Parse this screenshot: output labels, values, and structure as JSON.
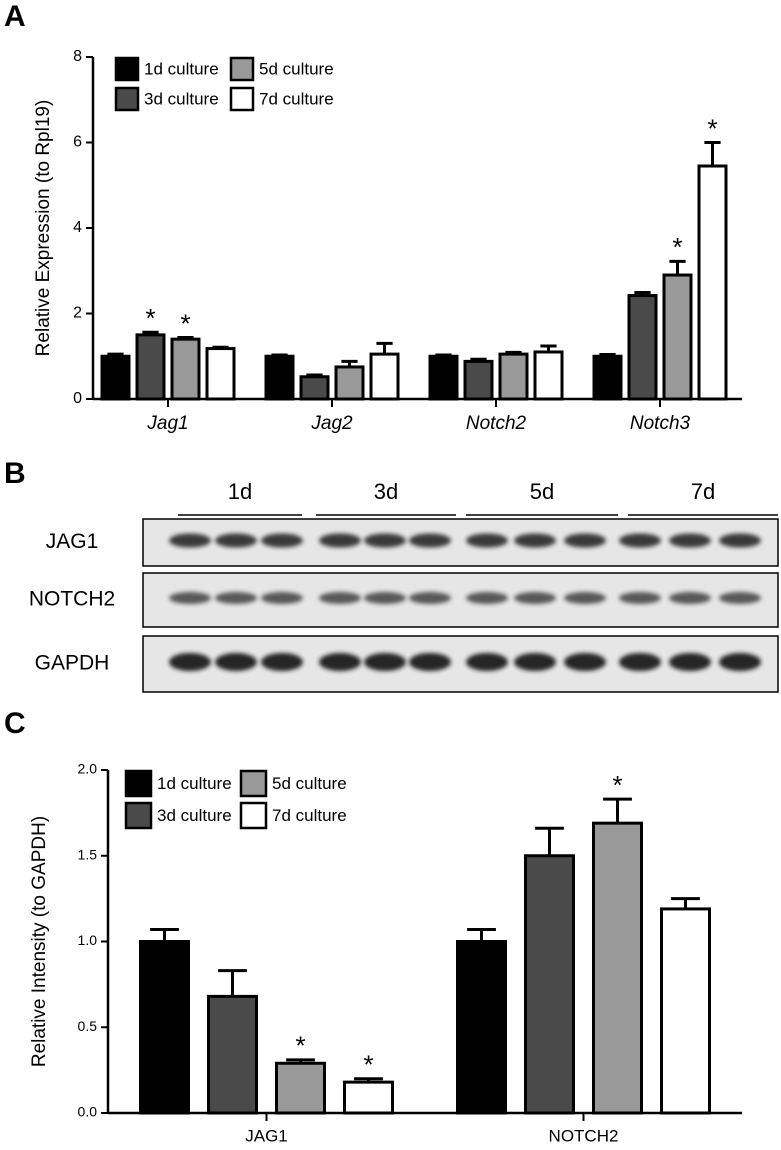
{
  "panel_labels": [
    "A",
    "B",
    "C"
  ],
  "chart_data": [
    {
      "type": "bar",
      "y_label": "Relative Expression (to Rpl19)",
      "categories": [
        "Jag1",
        "Jag2",
        "Notch2",
        "Notch3"
      ],
      "ylim": [
        0,
        8
      ],
      "yticks": [
        0,
        2,
        4,
        6,
        8
      ],
      "legend": "upper left",
      "italic_categories": true,
      "series": [
        {
          "name": "1d culture",
          "color": "#000000",
          "values": [
            1.0,
            1.0,
            1.0,
            1.0
          ],
          "errors": [
            0.05,
            0.03,
            0.03,
            0.04
          ],
          "annotations": [
            null,
            null,
            null,
            null
          ]
        },
        {
          "name": "3d culture",
          "color": "#4a4a4a",
          "values": [
            1.5,
            0.52,
            0.88,
            2.42
          ],
          "errors": [
            0.06,
            0.04,
            0.05,
            0.07
          ],
          "annotations": [
            "*",
            null,
            null,
            null
          ]
        },
        {
          "name": "5d culture",
          "color": "#999999",
          "values": [
            1.4,
            0.75,
            1.05,
            2.9
          ],
          "errors": [
            0.04,
            0.13,
            0.04,
            0.32
          ],
          "annotations": [
            "*",
            null,
            null,
            "*"
          ]
        },
        {
          "name": "7d culture",
          "color": "#ffffff",
          "values": [
            1.18,
            1.05,
            1.1,
            5.45
          ],
          "errors": [
            0.03,
            0.25,
            0.14,
            0.55
          ],
          "annotations": [
            null,
            null,
            null,
            "*"
          ]
        }
      ]
    },
    {
      "type": "bar",
      "y_label": "Relative Intensity (to GAPDH)",
      "categories": [
        "JAG1",
        "NOTCH2"
      ],
      "ylim": [
        0,
        2
      ],
      "legend": "upper left",
      "italic_categories": false,
      "yticks": [
        {
          "value": 0,
          "label": "0.0"
        },
        {
          "value": 0.5,
          "label": "0.5"
        },
        {
          "value": 1,
          "label": "1.0"
        },
        {
          "value": 1.5,
          "label": "1.5"
        },
        {
          "value": 2,
          "label": "2.0"
        }
      ],
      "series": [
        {
          "name": "1d culture",
          "color": "#000000",
          "values": [
            1.0,
            1.0
          ],
          "errors": [
            0.07,
            0.07
          ],
          "annotations": [
            null,
            null
          ]
        },
        {
          "name": "3d culture",
          "color": "#4a4a4a",
          "values": [
            0.68,
            1.5
          ],
          "errors": [
            0.15,
            0.16
          ],
          "annotations": [
            null,
            null
          ]
        },
        {
          "name": "5d culture",
          "color": "#999999",
          "values": [
            0.29,
            1.69
          ],
          "errors": [
            0.02,
            0.14
          ],
          "annotations": [
            "*",
            "*"
          ]
        },
        {
          "name": "7d culture",
          "color": "#ffffff",
          "values": [
            0.18,
            1.19
          ],
          "errors": [
            0.02,
            0.06
          ],
          "annotations": [
            "*",
            null
          ]
        }
      ]
    }
  ],
  "blot": {
    "lanes": [
      "1d",
      "3d",
      "5d",
      "7d"
    ],
    "rows": [
      "JAG1",
      "NOTCH2",
      "GAPDH"
    ]
  }
}
